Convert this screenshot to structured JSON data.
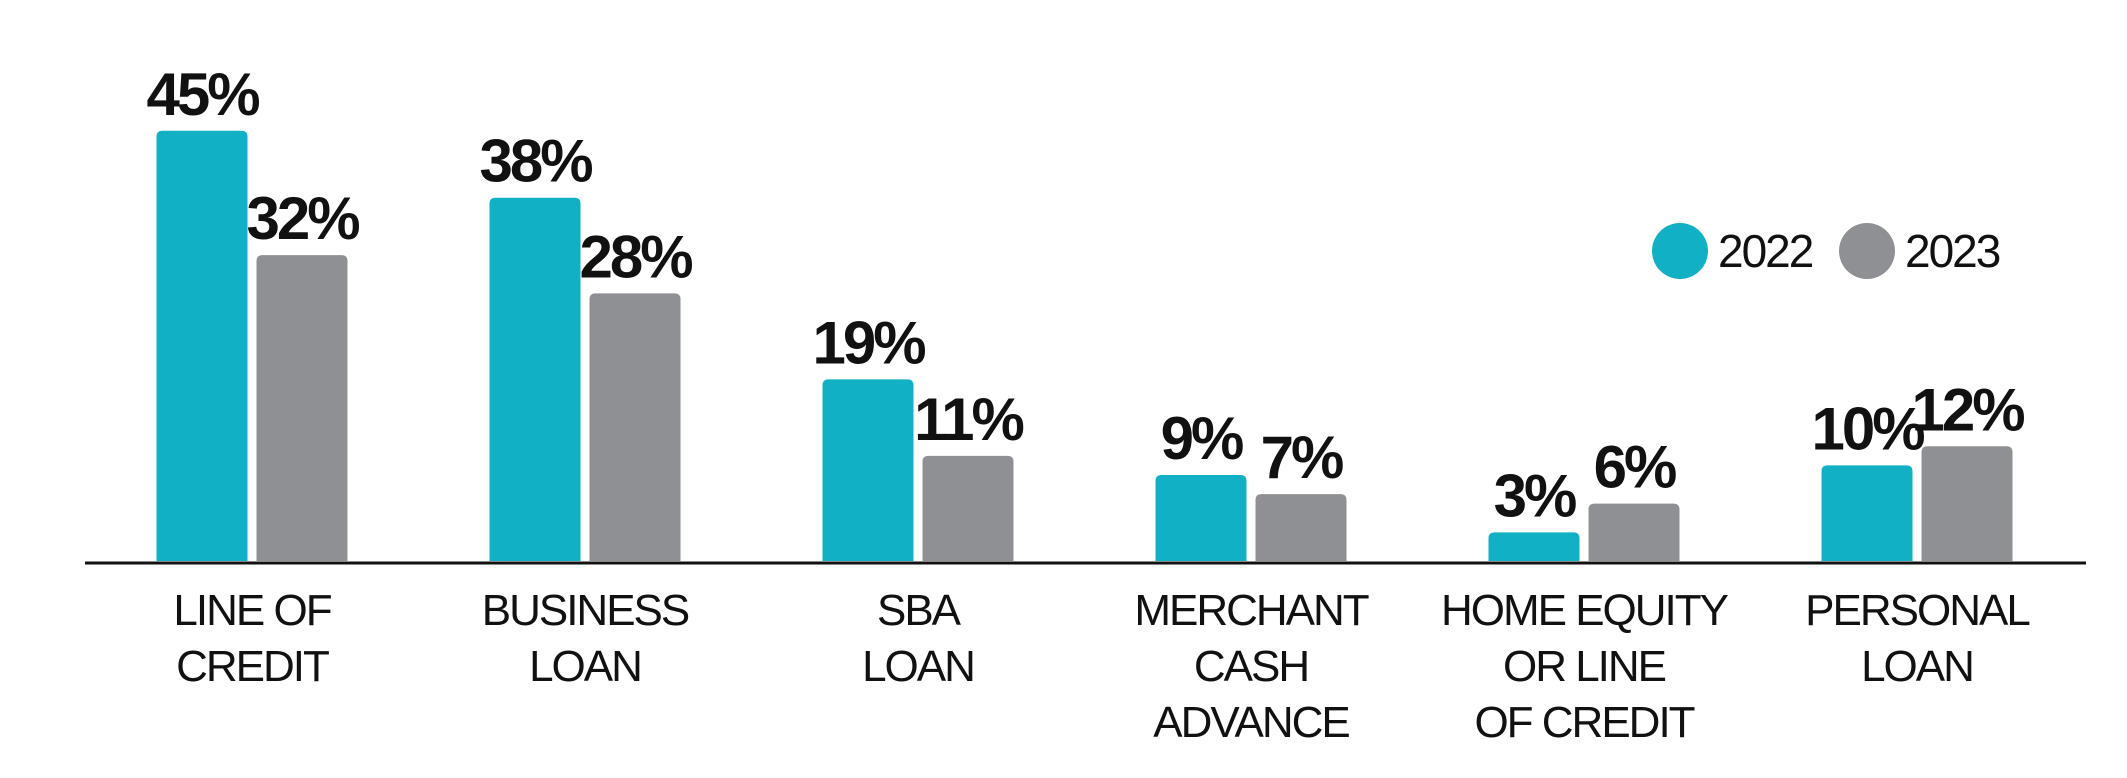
{
  "chart_data": {
    "type": "bar",
    "categories": [
      [
        "LINE OF",
        "CREDIT"
      ],
      [
        "BUSINESS",
        "LOAN"
      ],
      [
        "SBA",
        "LOAN"
      ],
      [
        "MERCHANT",
        "CASH",
        "ADVANCE"
      ],
      [
        "HOME EQUITY",
        "OR LINE",
        "OF CREDIT"
      ],
      [
        "PERSONAL",
        "LOAN"
      ]
    ],
    "series": [
      {
        "name": "2022",
        "color": "#12b0c4",
        "values": [
          45,
          38,
          19,
          9,
          3,
          10
        ],
        "value_labels": [
          "45%",
          "38%",
          "19%",
          "9%",
          "3%",
          "10%"
        ]
      },
      {
        "name": "2023",
        "color": "#8e9093",
        "values": [
          32,
          28,
          11,
          7,
          6,
          12
        ],
        "value_labels": [
          "32%",
          "28%",
          "11%",
          "7%",
          "6%",
          "12%"
        ]
      }
    ],
    "legend": "upper right"
  }
}
